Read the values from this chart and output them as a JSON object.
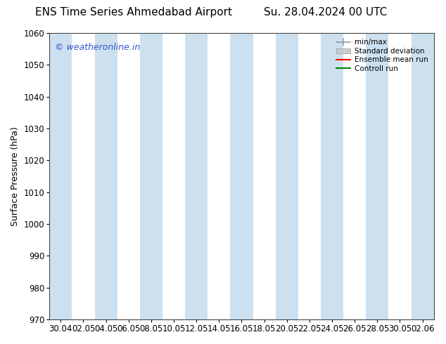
{
  "title_left": "ENS Time Series Ahmedabad Airport",
  "title_right": "Su. 28.04.2024 00 UTC",
  "ylabel": "Surface Pressure (hPa)",
  "ylim": [
    970,
    1060
  ],
  "yticks": [
    970,
    980,
    990,
    1000,
    1010,
    1020,
    1030,
    1040,
    1050,
    1060
  ],
  "xtick_labels": [
    "30.04",
    "02.05",
    "04.05",
    "06.05",
    "08.05",
    "10.05",
    "12.05",
    "14.05",
    "16.05",
    "18.05",
    "20.05",
    "22.05",
    "24.05",
    "26.05",
    "28.05",
    "30.05",
    "02.06"
  ],
  "watermark": "© weatheronline.in",
  "watermark_color": "#3355cc",
  "background_color": "#ffffff",
  "plot_bg_color": "#ffffff",
  "shaded_color": "#cce0f0",
  "shaded_alpha": 1.0,
  "legend_entries": [
    "min/max",
    "Standard deviation",
    "Ensemble mean run",
    "Controll run"
  ],
  "legend_colors": [
    "#999999",
    "#bbbbbb",
    "#ff0000",
    "#008800"
  ],
  "title_fontsize": 11,
  "tick_fontsize": 8.5,
  "ylabel_fontsize": 9,
  "watermark_fontsize": 9
}
